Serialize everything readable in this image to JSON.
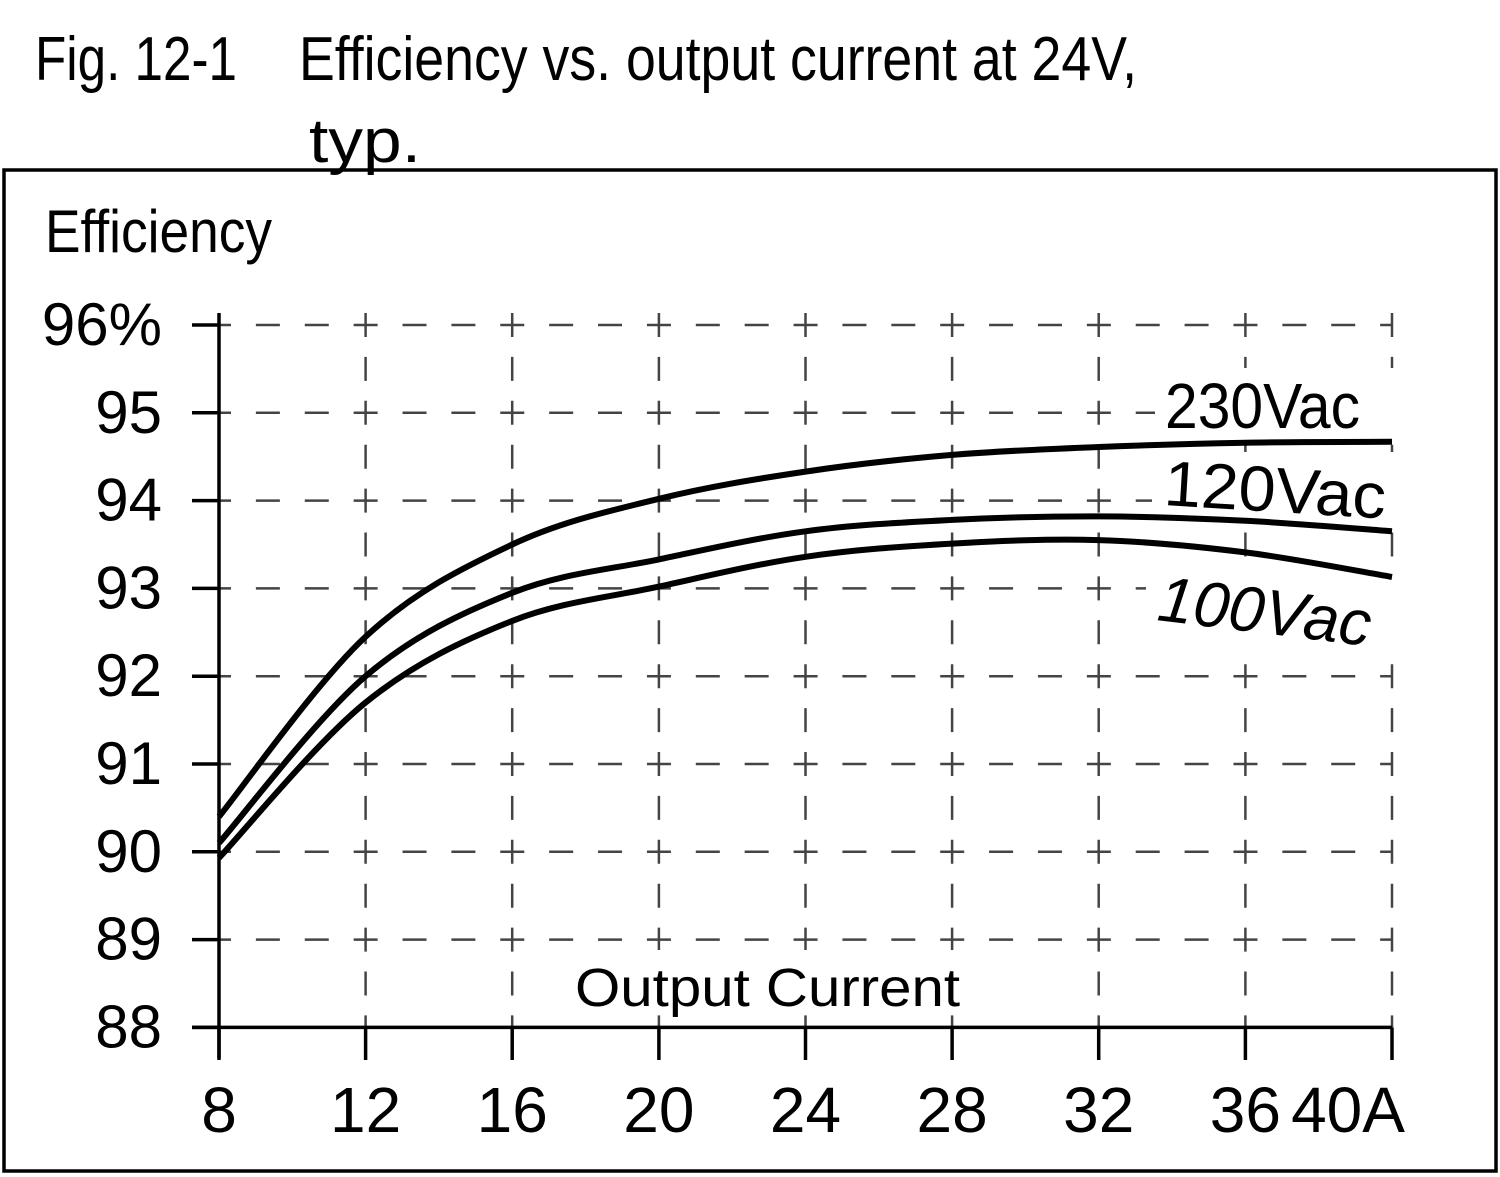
{
  "figure": {
    "label": "Fig. 12-1",
    "title_line1": "Efficiency vs. output current at 24V,",
    "title_line2": "typ."
  },
  "chart_data": {
    "type": "line",
    "title": "Efficiency vs. output current at 24V, typ.",
    "ylabel": "Efficiency",
    "xlabel": "Output Current",
    "x": [
      8,
      12,
      16,
      20,
      24,
      28,
      32,
      36,
      40
    ],
    "x_tick_labels": [
      "8",
      "12",
      "16",
      "20",
      "24",
      "28",
      "32",
      "36",
      "40A"
    ],
    "y_ticks": [
      96,
      95,
      94,
      93,
      92,
      91,
      90,
      89,
      88
    ],
    "y_tick_labels": [
      "96%",
      "95",
      "94",
      "93",
      "92",
      "91",
      "90",
      "89",
      "88"
    ],
    "xlim": [
      8,
      40
    ],
    "ylim": [
      88,
      96
    ],
    "grid": "dashed",
    "legend_position": "inline-right",
    "series": [
      {
        "name": "230Vac",
        "values": [
          90.4,
          92.45,
          93.5,
          94.02,
          94.33,
          94.52,
          94.61,
          94.66,
          94.67
        ]
      },
      {
        "name": "120Vac",
        "values": [
          90.1,
          92.0,
          92.95,
          93.33,
          93.65,
          93.78,
          93.82,
          93.77,
          93.65
        ]
      },
      {
        "name": "100Vac",
        "values": [
          89.93,
          91.7,
          92.63,
          93.02,
          93.36,
          93.51,
          93.55,
          93.41,
          93.13
        ]
      }
    ],
    "colors": {
      "line": "#000000",
      "grid": "#444444",
      "background": "#ffffff"
    }
  }
}
